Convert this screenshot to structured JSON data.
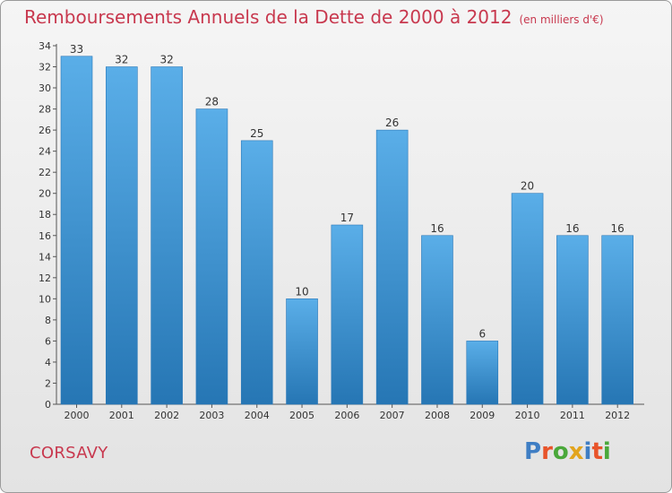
{
  "header": {
    "title": "Remboursements Annuels de la Dette de 2000 à 2012",
    "unit": "(en milliers d'€)"
  },
  "footer": {
    "commune": "CORSAVY",
    "logo_text": "Proxiti"
  },
  "colors": {
    "bar_light": "#5aaee8",
    "bar_dark": "#2676b4",
    "title": "#c8384e",
    "logo": [
      "#3f7ec4",
      "#e8542a",
      "#4aa83a",
      "#e2a41d",
      "#3f7ec4",
      "#e8542a",
      "#4aa83a"
    ]
  },
  "chart_data": {
    "type": "bar",
    "categories": [
      "2000",
      "2001",
      "2002",
      "2003",
      "2004",
      "2005",
      "2006",
      "2007",
      "2008",
      "2009",
      "2010",
      "2011",
      "2012"
    ],
    "values": [
      33,
      32,
      32,
      28,
      25,
      10,
      17,
      26,
      16,
      6,
      20,
      16,
      16
    ],
    "title": "Remboursements Annuels de la Dette de 2000 à 2012",
    "ylim": [
      0,
      34
    ],
    "yticks": [
      0,
      2,
      4,
      6,
      8,
      10,
      12,
      14,
      16,
      18,
      20,
      22,
      24,
      26,
      28,
      30,
      32,
      34
    ],
    "grid": false,
    "data_labels": true
  }
}
